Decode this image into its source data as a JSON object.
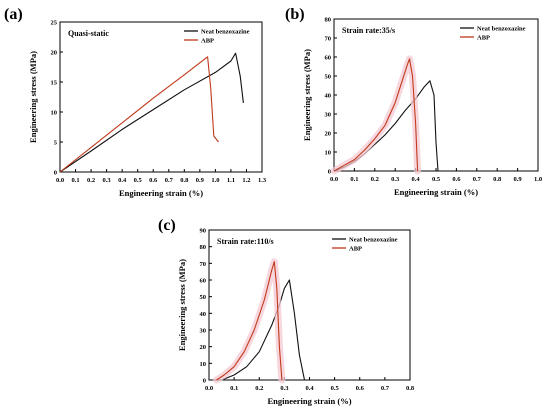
{
  "panel_labels": [
    "(a)",
    "(b)",
    "(c)"
  ],
  "colors": {
    "neat": "#111111",
    "abp": "#c0391b",
    "band": "#f4c9d2"
  },
  "chart_data": [
    {
      "type": "line",
      "panel": "(a)",
      "annotation": "Quasi-static",
      "xlabel": "Engineering strain (%)",
      "ylabel": "Engineering stress (MPa)",
      "xlim": [
        0,
        1.3
      ],
      "ylim": [
        0,
        25
      ],
      "xticks": [
        "0.0",
        "0.1",
        "0.2",
        "0.3",
        "0.4",
        "0.5",
        "0.6",
        "0.7",
        "0.8",
        "0.9",
        "1.0",
        "1.1",
        "1.2",
        "1.3"
      ],
      "yticks": [
        "0",
        "5",
        "10",
        "15",
        "20",
        "25"
      ],
      "legend_position": "top-right",
      "series": [
        {
          "name": "Neat benzoxazine",
          "key": "neat",
          "band": false,
          "x": [
            0,
            0.2,
            0.4,
            0.6,
            0.8,
            1.0,
            1.1,
            1.13,
            1.16,
            1.18
          ],
          "y": [
            0,
            3.5,
            7.1,
            10.4,
            13.7,
            16.6,
            18.5,
            19.8,
            16,
            11.5
          ]
        },
        {
          "name": "ABP",
          "key": "abp",
          "band": false,
          "x": [
            0,
            0.2,
            0.4,
            0.6,
            0.8,
            0.9,
            0.95,
            0.97,
            0.99,
            1.02
          ],
          "y": [
            0,
            4.1,
            8.2,
            12.3,
            16.2,
            18.2,
            19.2,
            14,
            6,
            5
          ]
        }
      ]
    },
    {
      "type": "line",
      "panel": "(b)",
      "annotation": "Strain rate:35/s",
      "xlabel": "Engineering strain (%)",
      "ylabel": "Engineering stress (MPa)",
      "xlim": [
        0,
        1.0
      ],
      "ylim": [
        0,
        80
      ],
      "xticks": [
        "0.0",
        "0.1",
        "0.2",
        "0.3",
        "0.4",
        "0.5",
        "0.6",
        "0.7",
        "0.8",
        "0.9",
        "1.0"
      ],
      "yticks": [
        "0",
        "10",
        "20",
        "30",
        "40",
        "50",
        "60",
        "70",
        "80"
      ],
      "legend_position": "top-right",
      "series": [
        {
          "name": "Neat benzoxazine",
          "key": "neat",
          "band": false,
          "x": [
            0,
            0.05,
            0.1,
            0.15,
            0.2,
            0.25,
            0.3,
            0.35,
            0.4,
            0.44,
            0.47,
            0.49,
            0.5,
            0.51
          ],
          "y": [
            0,
            2,
            5,
            9,
            14,
            19,
            25,
            32,
            38,
            44,
            47.5,
            40,
            15,
            0
          ]
        },
        {
          "name": "ABP",
          "key": "abp",
          "band": true,
          "x": [
            0,
            0.05,
            0.1,
            0.15,
            0.2,
            0.25,
            0.3,
            0.33,
            0.36,
            0.37,
            0.385,
            0.4,
            0.41
          ],
          "y": [
            0,
            3,
            6,
            11,
            17,
            24,
            36,
            46,
            56,
            59,
            50,
            25,
            0
          ]
        }
      ]
    },
    {
      "type": "line",
      "panel": "(c)",
      "annotation": "Strain rate:110/s",
      "xlabel": "Engineering strain (%)",
      "ylabel": "Engineering stress (MPa)",
      "xlim": [
        0,
        0.8
      ],
      "ylim": [
        0,
        90
      ],
      "xticks": [
        "0.0",
        "0.1",
        "0.2",
        "0.3",
        "0.4",
        "0.5",
        "0.6",
        "0.7",
        "0.8"
      ],
      "yticks": [
        "0",
        "10",
        "20",
        "30",
        "40",
        "50",
        "60",
        "70",
        "80",
        "90"
      ],
      "legend_position": "top-right",
      "series": [
        {
          "name": "Neat benzoxazine",
          "key": "neat",
          "band": false,
          "x": [
            0.05,
            0.1,
            0.15,
            0.2,
            0.25,
            0.28,
            0.3,
            0.32,
            0.34,
            0.36,
            0.38
          ],
          "y": [
            0,
            3,
            8,
            17,
            33,
            45,
            55,
            60,
            40,
            15,
            0
          ]
        },
        {
          "name": "ABP",
          "key": "abp",
          "band": true,
          "x": [
            0.03,
            0.06,
            0.1,
            0.14,
            0.18,
            0.22,
            0.25,
            0.26,
            0.27,
            0.28,
            0.29
          ],
          "y": [
            0,
            3,
            8,
            17,
            30,
            48,
            66,
            71,
            55,
            20,
            0
          ]
        }
      ]
    }
  ]
}
